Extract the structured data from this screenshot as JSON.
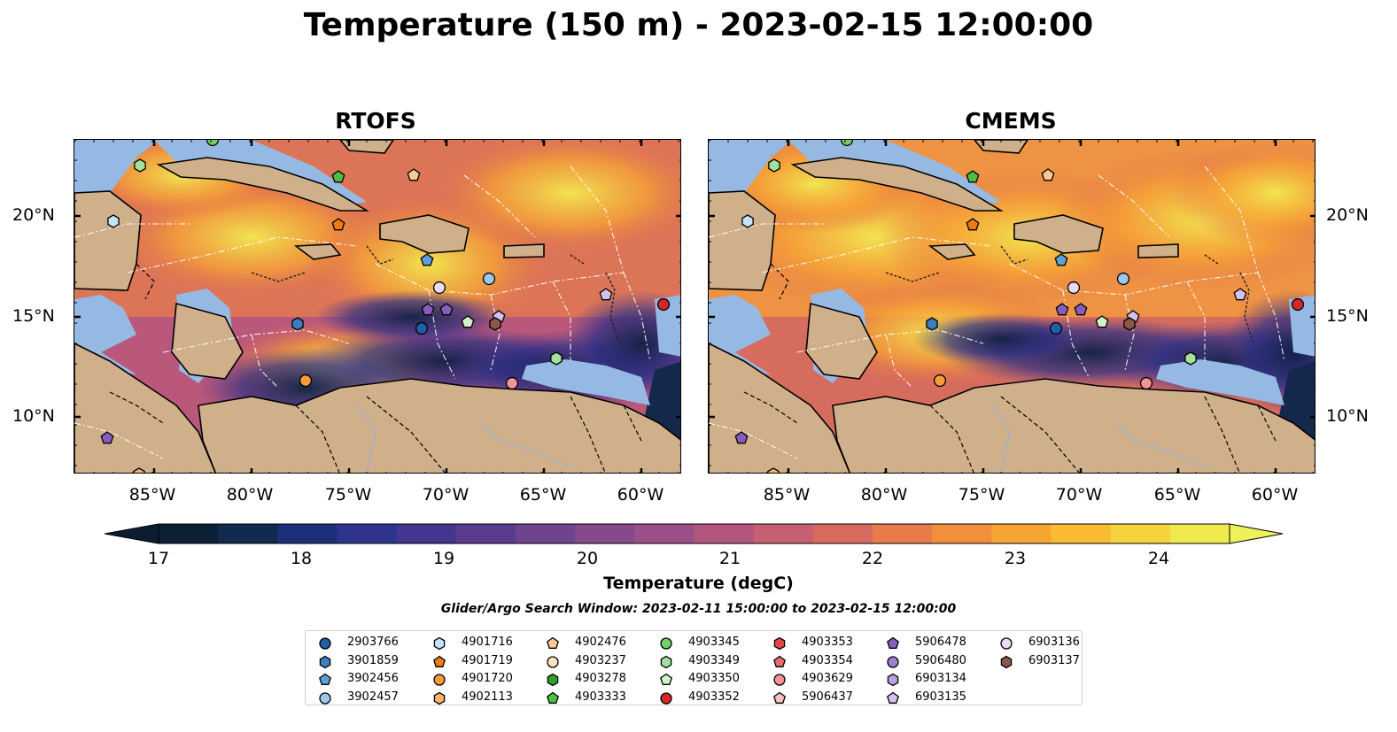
{
  "title": "Temperature (150 m) - 2023-02-15 12:00:00",
  "panels": [
    {
      "title": "RTOFS",
      "id": "rtofs"
    },
    {
      "title": "CMEMS",
      "id": "cmems"
    }
  ],
  "lon_ticks": [
    "85°W",
    "80°W",
    "75°W",
    "70°W",
    "65°W",
    "60°W"
  ],
  "lat_ticks": [
    "20°N",
    "15°N",
    "10°N"
  ],
  "colorbar": {
    "label": "Temperature (degC)",
    "ticks": [
      "17",
      "18",
      "19",
      "20",
      "21",
      "22",
      "23",
      "24"
    ],
    "colors": [
      "#0c2135",
      "#122a4e",
      "#1c2f7a",
      "#2e338c",
      "#44368f",
      "#5a3c8f",
      "#6f438e",
      "#86498a",
      "#9c4f86",
      "#b2567f",
      "#c65f72",
      "#d96a5f",
      "#e87a4c",
      "#f38e3c",
      "#f8a432",
      "#f9bb32",
      "#f5d33d",
      "#f1ea4f"
    ],
    "under_color": "#0a1e30",
    "over_color": "#eef25a"
  },
  "search_window": "Glider/Argo Search Window: 2023-02-11 15:00:00 to 2023-02-15 12:00:00",
  "legend": [
    {
      "id": "2903766",
      "marker": "circle",
      "color": "#1f5fa5"
    },
    {
      "id": "3901859",
      "marker": "hexagon",
      "color": "#3b7fc0"
    },
    {
      "id": "3902456",
      "marker": "pentagon",
      "color": "#5e9fd8"
    },
    {
      "id": "3902457",
      "marker": "circle",
      "color": "#9cc7ee"
    },
    {
      "id": "4901716",
      "marker": "hexagon",
      "color": "#c3e3f7"
    },
    {
      "id": "4901719",
      "marker": "pentagon",
      "color": "#f07a14"
    },
    {
      "id": "4901720",
      "marker": "circle",
      "color": "#f79a3e"
    },
    {
      "id": "4902113",
      "marker": "hexagon",
      "color": "#fbb46a"
    },
    {
      "id": "4902476",
      "marker": "pentagon",
      "color": "#fdca96"
    },
    {
      "id": "4903237",
      "marker": "circle",
      "color": "#fde0c2"
    },
    {
      "id": "4903278",
      "marker": "hexagon",
      "color": "#2ca02c"
    },
    {
      "id": "4903333",
      "marker": "pentagon",
      "color": "#4bbf45"
    },
    {
      "id": "4903345",
      "marker": "circle",
      "color": "#73cf66"
    },
    {
      "id": "4903349",
      "marker": "hexagon",
      "color": "#a3e29a"
    },
    {
      "id": "4903350",
      "marker": "pentagon",
      "color": "#d0f2c8"
    },
    {
      "id": "4903352",
      "marker": "circle",
      "color": "#d62728"
    },
    {
      "id": "4903353",
      "marker": "hexagon",
      "color": "#e0474a"
    },
    {
      "id": "4903354",
      "marker": "pentagon",
      "color": "#ea6a6e"
    },
    {
      "id": "4903629",
      "marker": "circle",
      "color": "#f29498"
    },
    {
      "id": "5906437",
      "marker": "pentagon",
      "color": "#f9c1c3"
    },
    {
      "id": "5906478",
      "marker": "pentagon",
      "color": "#8a5bbf"
    },
    {
      "id": "5906480",
      "marker": "circle",
      "color": "#a27ed1"
    },
    {
      "id": "6903134",
      "marker": "hexagon",
      "color": "#bba0df"
    },
    {
      "id": "6903135",
      "marker": "pentagon",
      "color": "#d3c1ec"
    },
    {
      "id": "6903136",
      "marker": "circle",
      "color": "#ead9f7"
    },
    {
      "id": "6903137",
      "marker": "hexagon",
      "color": "#8c564b"
    }
  ]
}
